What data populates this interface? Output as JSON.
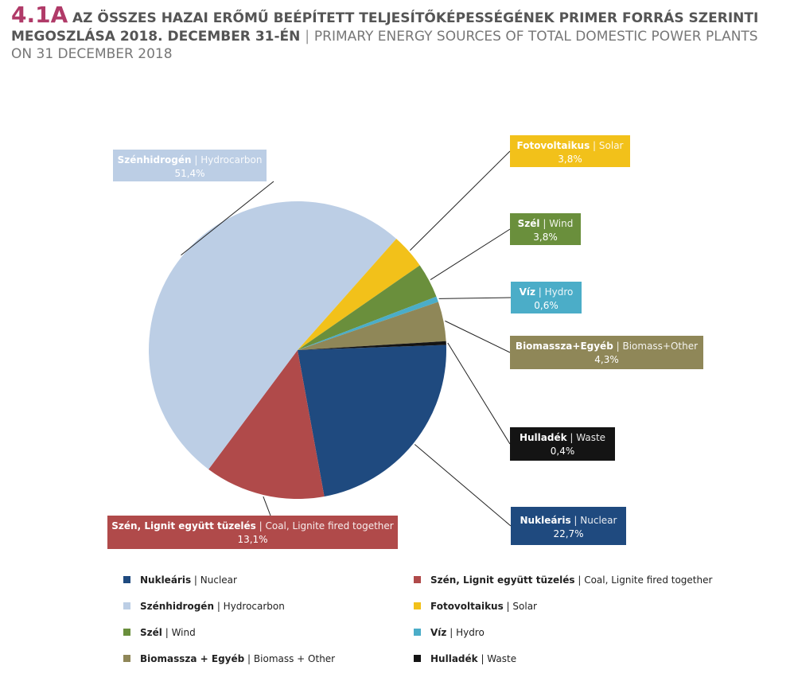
{
  "header": {
    "number": "4.1A",
    "title_hu_line1": "AZ ÖSSZES HAZAI ERŐMŰ BEÉPÍTETT TELJESÍTŐKÉPESSÉGÉNEK PRIMER FORRÁS SZERINTI",
    "title_hu_line2": "MEGOSZLÁSA 2018. DECEMBER 31-ÉN",
    "separator": "|",
    "title_en_line2": "PRIMARY ENERGY SOURCES OF TOTAL DOMESTIC POWER PLANTS",
    "title_en_line3": "ON 31 DECEMBER 2018"
  },
  "chart_data": {
    "type": "pie",
    "slices": [
      {
        "hu": "Nukleáris",
        "en": "Nuclear",
        "value": 22.7,
        "label": "22,7%",
        "color": "#1f4a7f"
      },
      {
        "hu": "Szén, Lignit együtt tüzelés",
        "en": "Coal, Lignite fired together",
        "value": 13.1,
        "label": "13,1%",
        "color": "#b04a4a"
      },
      {
        "hu": "Szénhidrogén",
        "en": "Hydrocarbon",
        "value": 51.4,
        "label": "51,4%",
        "color": "#bccee5"
      },
      {
        "hu": "Fotovoltaikus",
        "en": "Solar",
        "value": 3.8,
        "label": "3,8%",
        "color": "#f2c11a"
      },
      {
        "hu": "Szél",
        "en": "Wind",
        "value": 3.8,
        "label": "3,8%",
        "color": "#6a8f3c"
      },
      {
        "hu": "Víz",
        "en": "Hydro",
        "value": 0.6,
        "label": "0,6%",
        "color": "#4badc8"
      },
      {
        "hu": "Biomassza+Egyéb",
        "en": "Biomass+Other",
        "value": 4.3,
        "label": "4,3%",
        "color": "#8f8758"
      },
      {
        "hu": "Hulladék",
        "en": "Waste",
        "value": 0.4,
        "label": "0,4%",
        "color": "#141414"
      }
    ]
  },
  "legend": {
    "items": [
      {
        "hu": "Nukleáris",
        "en": "Nuclear",
        "color": "#1f4a7f"
      },
      {
        "hu": "Szén, Lignit együtt tüzelés",
        "en": "Coal, Lignite fired together",
        "color": "#b04a4a"
      },
      {
        "hu": "Szénhidrogén",
        "en": "Hydrocarbon",
        "color": "#bccee5"
      },
      {
        "hu": "Fotovoltaikus",
        "en": "Solar",
        "color": "#f2c11a"
      },
      {
        "hu": "Szél",
        "en": "Wind",
        "color": "#6a8f3c"
      },
      {
        "hu": "Víz",
        "en": "Hydro",
        "color": "#4badc8"
      },
      {
        "hu": "Biomassza + Egyéb",
        "en": "Biomass + Other",
        "color": "#8f8758"
      },
      {
        "hu": "Hulladék",
        "en": "Waste",
        "color": "#141414"
      }
    ]
  }
}
